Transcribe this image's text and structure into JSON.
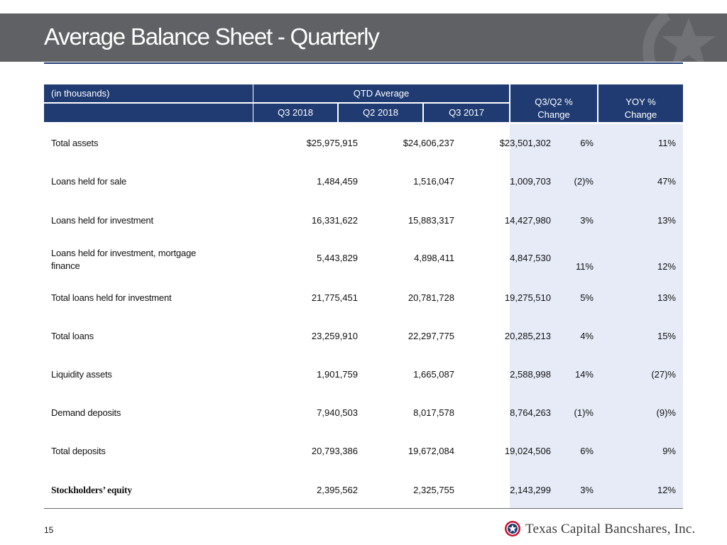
{
  "header": {
    "title": "Average Balance Sheet - Quarterly"
  },
  "table": {
    "units_label": "(in thousands)",
    "group_label": "QTD Average",
    "columns": [
      "Q3 2018",
      "Q2 2018",
      "Q3 2017"
    ],
    "change_cols": [
      {
        "line1": "Q3/Q2 %",
        "line2": "Change"
      },
      {
        "line1": "YOY %",
        "line2": "Change"
      }
    ],
    "rows": [
      {
        "label": "Total assets",
        "q3_2018": "$25,975,915",
        "q2_2018": "$24,606,237",
        "q3_2017": "$23,501,302",
        "qq": "6%",
        "yoy": "11%"
      },
      {
        "label": "Loans held for sale",
        "q3_2018": "1,484,459",
        "q2_2018": "1,516,047",
        "q3_2017": "1,009,703",
        "qq": "(2)%",
        "yoy": "47%"
      },
      {
        "label": "Loans held for investment",
        "q3_2018": "16,331,622",
        "q2_2018": "15,883,317",
        "q3_2017": "14,427,980",
        "qq": "3%",
        "yoy": "13%"
      },
      {
        "label_line1": "Loans held for investment, mortgage",
        "label_line2": "finance",
        "q3_2018": "5,443,829",
        "q2_2018": "4,898,411",
        "q3_2017": "4,847,530",
        "qq": "11%",
        "yoy": "12%"
      },
      {
        "label": "Total loans held for investment",
        "q3_2018": "21,775,451",
        "q2_2018": "20,781,728",
        "q3_2017": "19,275,510",
        "qq": "5%",
        "yoy": "13%"
      },
      {
        "label": "Total loans",
        "q3_2018": "23,259,910",
        "q2_2018": "22,297,775",
        "q3_2017": "20,285,213",
        "qq": "4%",
        "yoy": "15%"
      },
      {
        "label": "Liquidity assets",
        "q3_2018": "1,901,759",
        "q2_2018": "1,665,087",
        "q3_2017": "2,588,998",
        "qq": "14%",
        "yoy": "(27)%"
      },
      {
        "label": "Demand deposits",
        "q3_2018": "7,940,503",
        "q2_2018": "8,017,578",
        "q3_2017": "8,764,263",
        "qq": "(1)%",
        "yoy": "(9)%"
      },
      {
        "label": "Total deposits",
        "q3_2018": "20,793,386",
        "q2_2018": "19,672,084",
        "q3_2017": "19,024,506",
        "qq": "6%",
        "yoy": "9%"
      },
      {
        "label": "Stockholders’ equity",
        "q3_2018": "2,395,562",
        "q2_2018": "2,325,755",
        "q3_2017": "2,143,299",
        "qq": "3%",
        "yoy": "12%"
      }
    ]
  },
  "footer": {
    "page_number": "15",
    "logo_text_main": "Texas Capital Bancshares, Inc.",
    "logo_icon": "star-seal-icon",
    "emblem_icon": "star-emblem-icon"
  },
  "colors": {
    "title_bar": "#5f6164",
    "header_blue": "#1f3b72",
    "change_band": "#e6ebf7",
    "logo_red": "#c8102e"
  }
}
